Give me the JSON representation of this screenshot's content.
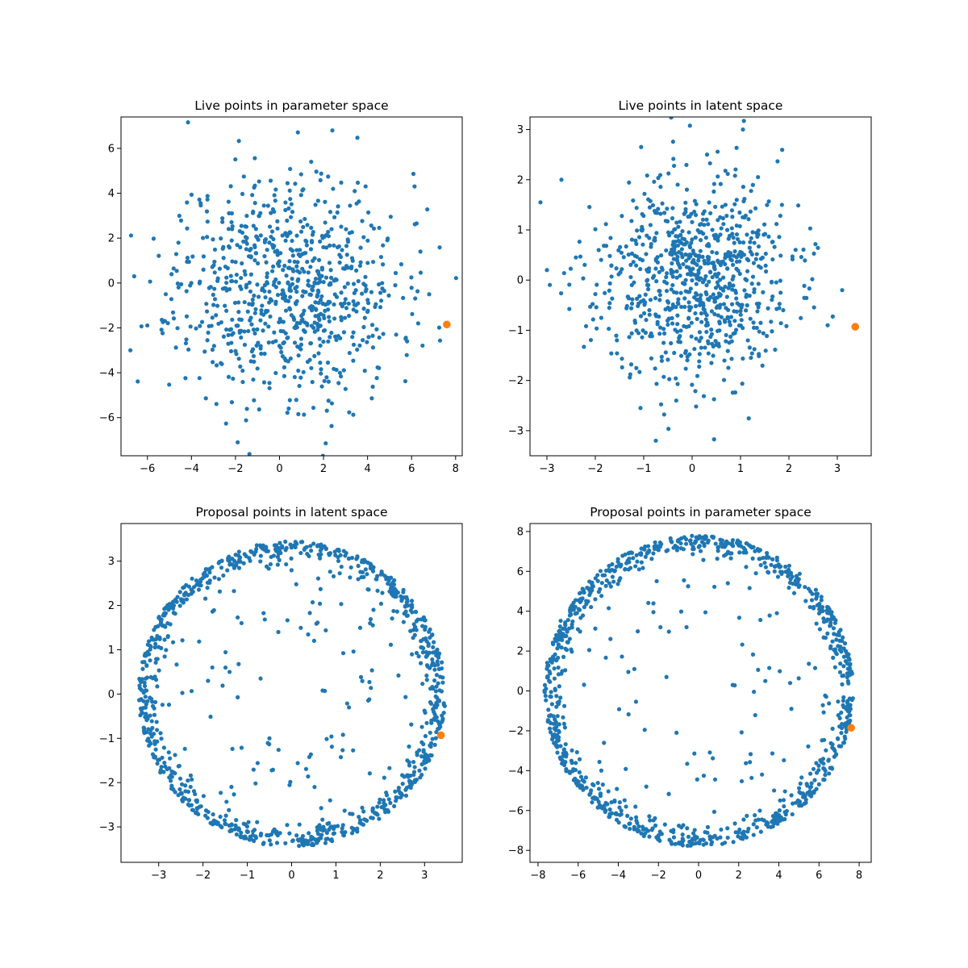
{
  "chart_data": [
    {
      "type": "scatter",
      "title": "Live points in parameter space",
      "xlabel": "",
      "ylabel": "",
      "xlim": [
        -7.2,
        8.3
      ],
      "ylim": [
        -7.7,
        7.4
      ],
      "xticks": [
        -6,
        -4,
        -2,
        0,
        2,
        4,
        6,
        8
      ],
      "yticks": [
        -6,
        -4,
        -2,
        0,
        2,
        4,
        6
      ],
      "grid": false,
      "series": [
        {
          "color": "#1f77b4",
          "marker_size": "small",
          "distribution": {
            "shape": "gaussian",
            "n": 800,
            "sx": 2.5,
            "sy": 2.5,
            "cx": 0.3,
            "cy": -0.1,
            "seed": 11
          },
          "points": [
            [
              -6.6,
              0.3
            ],
            [
              6.8,
              -0.5
            ],
            [
              6.3,
              -1.8
            ],
            [
              2.4,
              6.8
            ],
            [
              -1.9,
              -7.1
            ],
            [
              5.3,
              -2.3
            ],
            [
              6.4,
              1.4
            ]
          ]
        },
        {
          "color": "#ff7f0e",
          "marker_size": "large",
          "points": [
            [
              7.6,
              -1.85
            ]
          ]
        }
      ]
    },
    {
      "type": "scatter",
      "title": "Live points in latent space",
      "xlabel": "",
      "ylabel": "",
      "xlim": [
        -3.35,
        3.7
      ],
      "ylim": [
        -3.5,
        3.25
      ],
      "xticks": [
        -3,
        -2,
        -1,
        0,
        1,
        2,
        3
      ],
      "yticks": [
        -3,
        -2,
        -1,
        0,
        1,
        2,
        3
      ],
      "grid": false,
      "series": [
        {
          "color": "#1f77b4",
          "marker_size": "small",
          "distribution": {
            "shape": "gaussian",
            "n": 800,
            "sx": 1.0,
            "sy": 1.0,
            "cx": 0.0,
            "cy": 0.0,
            "seed": 23
          },
          "points": [
            [
              -3.0,
              0.2
            ],
            [
              1.05,
              3.0
            ],
            [
              -0.75,
              -3.2
            ],
            [
              3.1,
              -0.2
            ],
            [
              2.8,
              -0.9
            ],
            [
              -2.7,
              2.0
            ]
          ]
        },
        {
          "color": "#ff7f0e",
          "marker_size": "large",
          "points": [
            [
              3.37,
              -0.93
            ]
          ]
        }
      ]
    },
    {
      "type": "scatter",
      "title": "Proposal points in latent space",
      "xlabel": "",
      "ylabel": "",
      "xlim": [
        -3.85,
        3.85
      ],
      "ylim": [
        -3.8,
        3.85
      ],
      "xticks": [
        -3,
        -2,
        -1,
        0,
        1,
        2,
        3
      ],
      "yticks": [
        -3,
        -2,
        -1,
        0,
        1,
        2,
        3
      ],
      "grid": false,
      "series": [
        {
          "color": "#1f77b4",
          "marker_size": "small",
          "distribution": {
            "shape": "ring",
            "n": 1000,
            "rx": 3.47,
            "ry": 3.45,
            "cx": 0.0,
            "cy": 0.0,
            "seed": 37
          },
          "points": [
            [
              0.7,
              0.08
            ],
            [
              0.75,
              0.07
            ],
            [
              -0.5,
              -1.0
            ],
            [
              -0.3,
              1.4
            ],
            [
              -1.4,
              0.5
            ],
            [
              -0.7,
              0.35
            ]
          ]
        },
        {
          "color": "#ff7f0e",
          "marker_size": "large",
          "points": [
            [
              3.37,
              -0.93
            ]
          ]
        }
      ]
    },
    {
      "type": "scatter",
      "title": "Proposal points in parameter space",
      "xlabel": "",
      "ylabel": "",
      "xlim": [
        -8.4,
        8.6
      ],
      "ylim": [
        -8.6,
        8.4
      ],
      "xticks": [
        -8,
        -6,
        -4,
        -2,
        0,
        2,
        4,
        6,
        8
      ],
      "yticks": [
        -8,
        -6,
        -4,
        -2,
        0,
        2,
        4,
        6,
        8
      ],
      "grid": false,
      "series": [
        {
          "color": "#1f77b4",
          "marker_size": "small",
          "distribution": {
            "shape": "ring",
            "n": 1000,
            "rx": 7.7,
            "ry": 7.8,
            "cx": 0.0,
            "cy": 0.0,
            "seed": 53
          },
          "points": [
            [
              1.7,
              0.3
            ],
            [
              1.8,
              0.28
            ],
            [
              -1.1,
              -2.1
            ],
            [
              -0.6,
              3.2
            ],
            [
              -3.2,
              1.1
            ],
            [
              -1.6,
              0.7
            ]
          ]
        },
        {
          "color": "#ff7f0e",
          "marker_size": "large",
          "points": [
            [
              7.6,
              -1.85
            ]
          ]
        }
      ]
    }
  ]
}
